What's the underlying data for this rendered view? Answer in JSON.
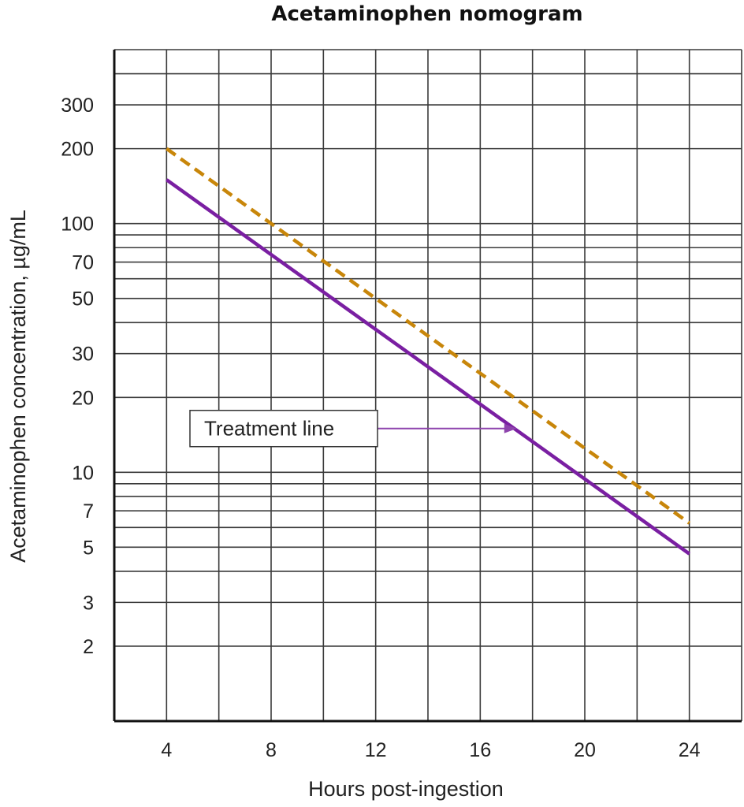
{
  "chart_data": {
    "type": "line",
    "title": "Acetaminophen nomogram",
    "xlabel": "Hours post-ingestion",
    "ylabel": "Acetaminophen concentration, µg/mL",
    "xlim": [
      2,
      26
    ],
    "ylim": [
      1,
      500
    ],
    "yscale": "log",
    "grid": true,
    "x_ticks": [
      4,
      8,
      12,
      16,
      20,
      24
    ],
    "x_gridlines": [
      2,
      4,
      6,
      8,
      10,
      12,
      14,
      16,
      18,
      20,
      22,
      24,
      26
    ],
    "y_ticks": [
      2,
      3,
      5,
      7,
      10,
      20,
      30,
      50,
      70,
      100,
      200,
      300
    ],
    "y_gridlines": [
      2,
      3,
      4,
      5,
      6,
      7,
      8,
      9,
      10,
      20,
      30,
      40,
      50,
      60,
      70,
      80,
      90,
      100,
      200,
      300,
      400,
      500
    ],
    "series": [
      {
        "x": [
          4,
          24
        ],
        "values": [
          200,
          6.25
        ],
        "color": "#c8860a",
        "style": "dashed"
      },
      {
        "name": "Treatment line",
        "x": [
          4,
          24
        ],
        "values": [
          150,
          4.7
        ],
        "color": "#7a1fa2",
        "style": "solid"
      }
    ],
    "annotations": [
      {
        "text": "Treatment line",
        "points_to": {
          "x": 17.4,
          "y": 15
        }
      }
    ]
  }
}
